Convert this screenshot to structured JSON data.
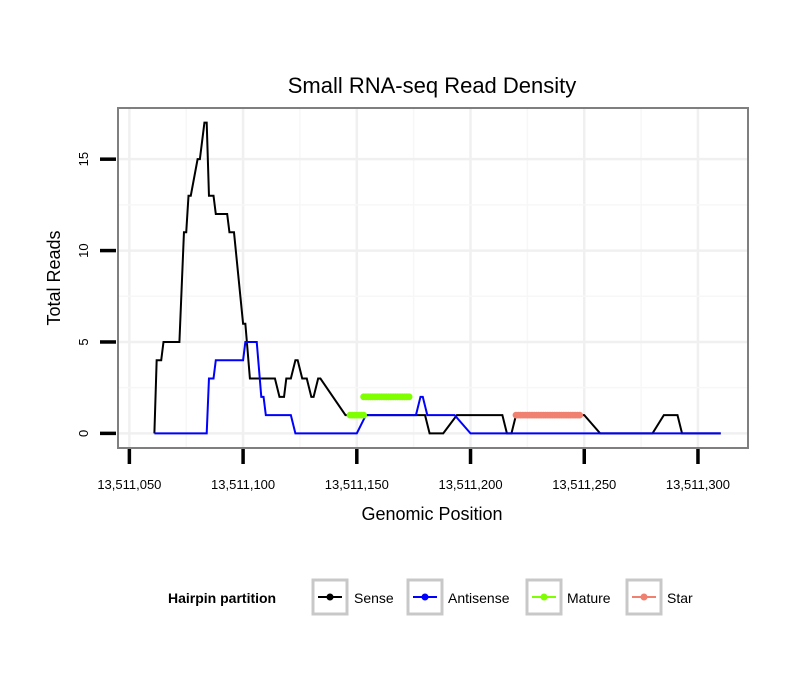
{
  "chart_data": {
    "type": "line",
    "title": "Small RNA-seq Read Density",
    "xlabel": "Genomic Position",
    "ylabel": "Total Reads",
    "xlim": [
      13511045,
      13511322
    ],
    "ylim": [
      -0.8,
      17.8
    ],
    "x_ticks": [
      13511050,
      13511100,
      13511150,
      13511200,
      13511250,
      13511300
    ],
    "x_tick_labels": [
      "13,511,050",
      "13,511,100",
      "13,511,150",
      "13,511,200",
      "13,511,250",
      "13,511,300"
    ],
    "y_ticks": [
      0,
      5,
      10,
      15
    ],
    "y_tick_labels": [
      "0",
      "5",
      "10",
      "15"
    ],
    "grid": true,
    "legend": {
      "title": "Hairpin partition",
      "placement": "bottom",
      "entries": [
        "Sense",
        "Antisense",
        "Mature",
        "Star"
      ]
    },
    "series": [
      {
        "name": "Sense",
        "color": "#000000",
        "style": "step",
        "x": [
          13511061,
          13511062,
          13511064,
          13511065,
          13511072,
          13511074,
          13511075,
          13511076,
          13511077,
          13511080,
          13511081,
          13511083,
          13511084,
          13511085,
          13511087,
          13511088,
          13511090,
          13511091,
          13511093,
          13511094,
          13511096,
          13511100,
          13511101,
          13511103,
          13511104,
          13511106,
          13511108,
          13511110,
          13511114,
          13511116,
          13511118,
          13511119,
          13511121,
          13511123,
          13511124,
          13511126,
          13511128,
          13511130,
          13511131,
          13511133,
          13511134,
          13511145,
          13511147,
          13511151,
          13511153,
          13511155,
          13511160,
          13511162,
          13511167,
          13511170,
          13511174,
          13511178,
          13511180,
          13511182,
          13511188,
          13511194,
          13511195,
          13511196,
          13511199,
          13511201,
          13511210,
          13511212,
          13511214,
          13511216,
          13511218,
          13511220,
          13511230,
          13511240,
          13511243,
          13511247,
          13511250,
          13511257,
          13511262,
          13511264,
          13511266,
          13511268,
          13511270,
          13511278,
          13511280,
          13511285,
          13511287,
          13511289,
          13511291,
          13511293,
          13511300,
          13511310
        ],
        "y": [
          0,
          4,
          4,
          5,
          5,
          11,
          11,
          13,
          13,
          15,
          15,
          17,
          17,
          13,
          13,
          12,
          12,
          12,
          12,
          11,
          11,
          6,
          6,
          3,
          3,
          3,
          3,
          3,
          3,
          2,
          2,
          3,
          3,
          4,
          4,
          3,
          3,
          2,
          2,
          3,
          3,
          1,
          1,
          1,
          1,
          1,
          1,
          1,
          1,
          1,
          1,
          1,
          1,
          0,
          0,
          1,
          1,
          1,
          1,
          1,
          1,
          1,
          1,
          0,
          0,
          1,
          1,
          1,
          1,
          1,
          1,
          0,
          0,
          0,
          0,
          0,
          0,
          0,
          0,
          1,
          1,
          1,
          1,
          0,
          0,
          0
        ]
      },
      {
        "name": "Antisense",
        "color": "#0000ff",
        "style": "step",
        "x": [
          13511061,
          13511084,
          13511085,
          13511086,
          13511087,
          13511088,
          13511100,
          13511101,
          13511102,
          13511105,
          13511106,
          13511108,
          13511109,
          13511110,
          13511115,
          13511120,
          13511121,
          13511123,
          13511124,
          13511133,
          13511134,
          13511150,
          13511154,
          13511155,
          13511156,
          13511160,
          13511176,
          13511178,
          13511179,
          13511181,
          13511182,
          13511192,
          13511193,
          13511200,
          13511210,
          13511230,
          13511240,
          13511250,
          13511260,
          13511270,
          13511288,
          13511290,
          13511300,
          13511310
        ],
        "y": [
          0,
          0,
          3,
          3,
          3,
          4,
          4,
          5,
          5,
          5,
          5,
          2,
          2,
          1,
          1,
          1,
          1,
          0,
          0,
          0,
          0,
          0,
          1,
          1,
          1,
          1,
          1,
          2,
          2,
          1,
          1,
          1,
          1,
          0,
          0,
          0,
          0,
          0,
          0,
          0,
          0,
          0,
          0,
          0
        ]
      },
      {
        "name": "Mature",
        "color": "#7fff00",
        "style": "segments",
        "segments": [
          {
            "x": [
              13511147,
              13511153
            ],
            "y": 1
          },
          {
            "x": [
              13511153,
              13511173
            ],
            "y": 2
          }
        ]
      },
      {
        "name": "Star",
        "color": "#f08070",
        "style": "segments",
        "segments": [
          {
            "x": [
              13511220,
              13511248
            ],
            "y": 1
          }
        ]
      }
    ]
  }
}
